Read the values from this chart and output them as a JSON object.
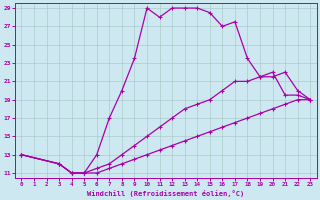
{
  "xlabel": "Windchill (Refroidissement éolien,°C)",
  "bg_color": "#cde8f0",
  "line_color": "#aa00aa",
  "grid_color": "#aacccc",
  "xlim": [
    -0.5,
    23.5
  ],
  "ylim": [
    10.5,
    29.5
  ],
  "xticks": [
    0,
    1,
    2,
    3,
    4,
    5,
    6,
    7,
    8,
    9,
    10,
    11,
    12,
    13,
    14,
    15,
    16,
    17,
    18,
    19,
    20,
    21,
    22,
    23
  ],
  "yticks": [
    11,
    13,
    15,
    17,
    19,
    21,
    23,
    25,
    27,
    29
  ],
  "curve1_x": [
    0,
    3,
    4,
    5,
    6,
    7,
    8,
    9,
    10,
    11,
    12,
    13,
    14,
    15,
    16,
    17,
    18,
    19,
    20,
    21,
    22,
    23
  ],
  "curve1_y": [
    13,
    12,
    11,
    11,
    11,
    11.5,
    12,
    12.5,
    13,
    13.5,
    14,
    14.5,
    15,
    15.5,
    16,
    16.5,
    17,
    17.5,
    18,
    18.5,
    19,
    19
  ],
  "curve2_x": [
    0,
    3,
    4,
    5,
    6,
    7,
    8,
    9,
    10,
    11,
    12,
    13,
    14,
    15,
    16,
    17,
    18,
    19,
    20,
    21,
    22,
    23
  ],
  "curve2_y": [
    13,
    12,
    11,
    11,
    13,
    17,
    20,
    23.5,
    29,
    28,
    29,
    29,
    29,
    28.5,
    27,
    27.5,
    23.5,
    21.5,
    22,
    19.5,
    19.5,
    19
  ],
  "curve3_x": [
    0,
    3,
    4,
    5,
    6,
    7,
    8,
    9,
    10,
    11,
    12,
    13,
    14,
    15,
    16,
    17,
    18,
    19,
    20,
    21,
    22,
    23
  ],
  "curve3_y": [
    13,
    12,
    11,
    11,
    11.5,
    12,
    13,
    14,
    15,
    16,
    17,
    18,
    18.5,
    19,
    20,
    21,
    21,
    21.5,
    21.5,
    22,
    20,
    19
  ]
}
